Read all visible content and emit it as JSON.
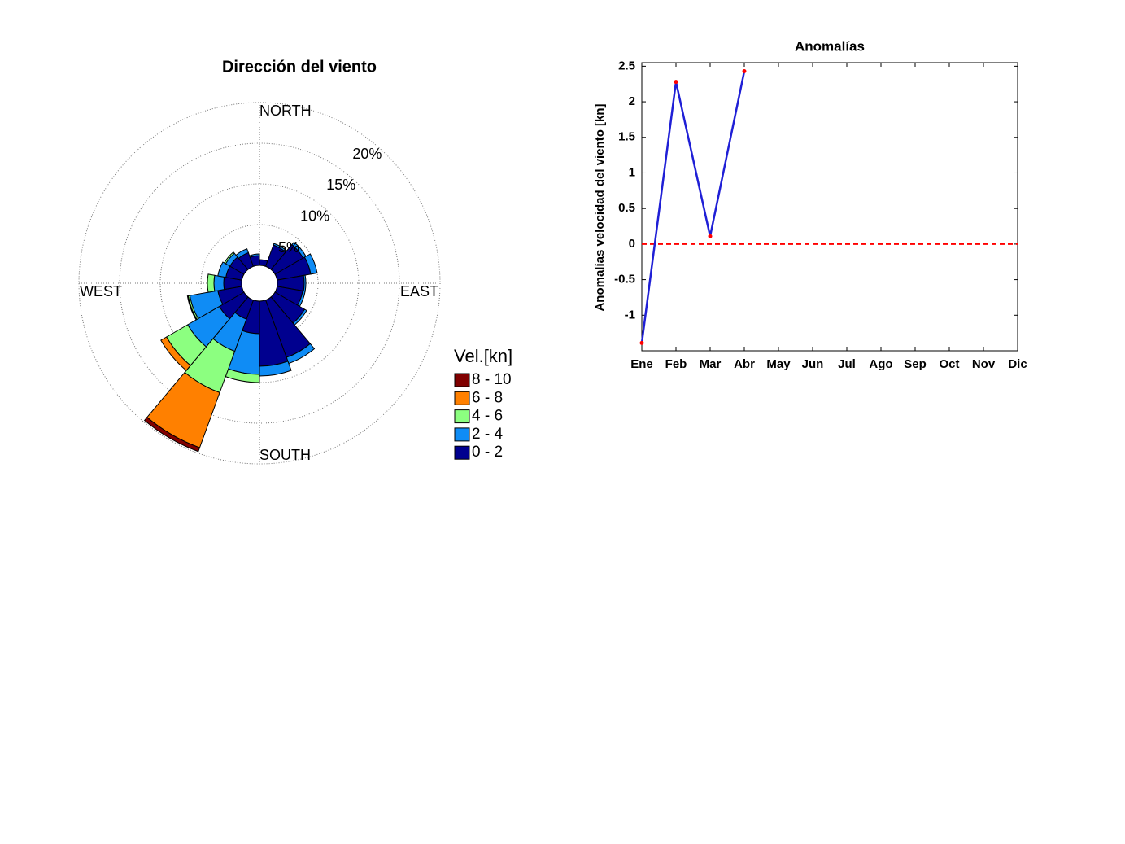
{
  "chart_data": [
    {
      "type": "windrose",
      "title": "Dirección del viento",
      "compass_labels": [
        "NORTH",
        "EAST",
        "SOUTH",
        "WEST"
      ],
      "directions": [
        10,
        30,
        50,
        70,
        90,
        110,
        130,
        150,
        170,
        190,
        210,
        230,
        250,
        270,
        290,
        310,
        330,
        350
      ],
      "rlim": [
        0,
        20
      ],
      "rticks": [
        {
          "value": 5,
          "label": "5%"
        },
        {
          "value": 10,
          "label": "10%"
        },
        {
          "value": 15,
          "label": "15%"
        },
        {
          "value": 20,
          "label": "20%"
        }
      ],
      "legend_title": "Vel.[kn]",
      "series": [
        {
          "name": "0 - 2",
          "color": "#00008f",
          "values": [
            0.7,
            2.8,
            4.0,
            4.2,
            3.3,
            3.2,
            4.2,
            7.5,
            8.0,
            4.0,
            2.5,
            3.5,
            3.0,
            2.2,
            2.0,
            2.0,
            1.8,
            1.2
          ]
        },
        {
          "name": "2 - 4",
          "color": "#0f8cf5",
          "values": [
            0,
            0.2,
            0.4,
            0.8,
            0.2,
            0.3,
            0.3,
            0.8,
            1.2,
            5.0,
            4.2,
            4.5,
            3.5,
            1.2,
            1.0,
            0.6,
            0.5,
            0.2
          ]
        },
        {
          "name": "4 - 6",
          "color": "#8cff80",
          "values": [
            0,
            0,
            0,
            0,
            0,
            0,
            0,
            0,
            0,
            1.0,
            5.4,
            3.0,
            0.2,
            0.8,
            0,
            0.2,
            0,
            0
          ]
        },
        {
          "name": "6 - 8",
          "color": "#ff8000",
          "values": [
            0,
            0,
            0,
            0,
            0,
            0,
            0,
            0,
            0,
            0,
            7.2,
            0.8,
            0.1,
            0,
            0,
            0,
            0,
            0
          ]
        },
        {
          "name": "8 - 10",
          "color": "#800000",
          "values": [
            0,
            0,
            0,
            0,
            0,
            0,
            0,
            0,
            0,
            0,
            0.5,
            0,
            0,
            0,
            0,
            0,
            0,
            0
          ]
        }
      ]
    },
    {
      "type": "line",
      "title": "Anomalías",
      "y_label": "Anomalías velocidad del viento [kn]",
      "categories": [
        "Ene",
        "Feb",
        "Mar",
        "Abr",
        "May",
        "Jun",
        "Jul",
        "Ago",
        "Sep",
        "Oct",
        "Nov",
        "Dic"
      ],
      "series": [
        {
          "color": "#1f1fd6",
          "marker_color": "#ff0000",
          "values": [
            -1.39,
            2.28,
            0.11,
            2.43,
            null,
            null,
            null,
            null,
            null,
            null,
            null,
            null
          ]
        }
      ],
      "ylim": [
        -1.5,
        2.55
      ],
      "yticks": [
        -1,
        -0.5,
        0,
        0.5,
        1,
        1.5,
        2,
        2.5
      ],
      "reference_line": 0,
      "reference_color": "#ff0000"
    }
  ]
}
